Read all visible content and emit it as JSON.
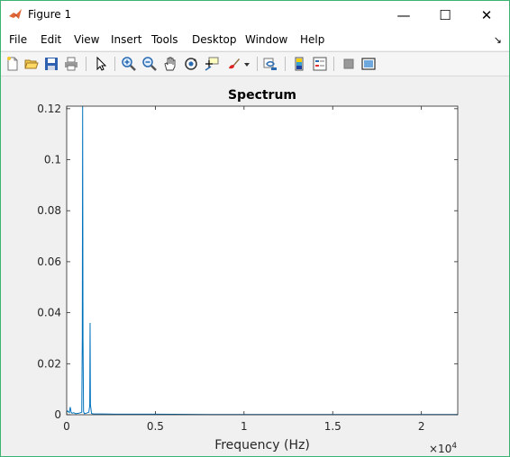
{
  "window": {
    "title": "Figure 1",
    "minimize_glyph": "—",
    "maximize_glyph": "☐",
    "close_glyph": "✕"
  },
  "menu": {
    "items": [
      "File",
      "Edit",
      "View",
      "Insert",
      "Tools",
      "Desktop",
      "Window",
      "Help"
    ],
    "overflow_glyph": "↘"
  },
  "toolbar": {
    "icons": [
      "new-figure-icon",
      "open-file-icon",
      "save-icon",
      "print-icon",
      "pointer-arrow-icon",
      "zoom-in-icon",
      "zoom-out-icon",
      "pan-hand-icon",
      "rotate-3d-icon",
      "data-cursor-icon",
      "brush-icon",
      "brush-dropdown-icon",
      "link-plot-icon",
      "colorbar-icon",
      "legend-icon",
      "hide-plot-tools-icon",
      "show-plot-tools-icon"
    ]
  },
  "colors": {
    "series": "#0072bd",
    "axes_bg": "#ffffff",
    "figure_bg": "#f0f0f0",
    "window_border": "#3cb371"
  },
  "chart_data": {
    "type": "line",
    "title": "Spectrum",
    "xlabel": "Frequency (Hz)",
    "ylabel": "",
    "x_exponent_label": "×10",
    "x_exponent_power": "4",
    "xlim": [
      0,
      22050
    ],
    "ylim": [
      0,
      0.121
    ],
    "xticks": [
      0,
      5000,
      10000,
      15000,
      20000
    ],
    "xtick_labels": [
      "0",
      "0.5",
      "1",
      "1.5",
      "2"
    ],
    "yticks": [
      0,
      0.02,
      0.04,
      0.06,
      0.08,
      0.1,
      0.12
    ],
    "ytick_labels": [
      "0",
      "0.02",
      "0.04",
      "0.06",
      "0.08",
      "0.1",
      "0.12"
    ],
    "grid": false,
    "series": [
      {
        "x": [
          0,
          50,
          150,
          200,
          250,
          300,
          400,
          500,
          700,
          850,
          880,
          900,
          920,
          950,
          1000,
          1100,
          1250,
          1300,
          1320,
          1340,
          1400,
          1500,
          2000,
          3000,
          5000,
          8000,
          12000,
          16000,
          20000,
          22050
        ],
        "y": [
          0.001,
          0.0015,
          0.0008,
          0.003,
          0.001,
          0.0006,
          0.0008,
          0.0004,
          0.0006,
          0.001,
          0.03,
          0.121,
          0.03,
          0.0012,
          0.0004,
          0.0006,
          0.001,
          0.0036,
          0.036,
          0.004,
          0.0005,
          0.0003,
          0.0003,
          0.0002,
          0.0002,
          0.0001,
          0.0001,
          0.0001,
          0.0001,
          0.0001
        ]
      }
    ]
  }
}
